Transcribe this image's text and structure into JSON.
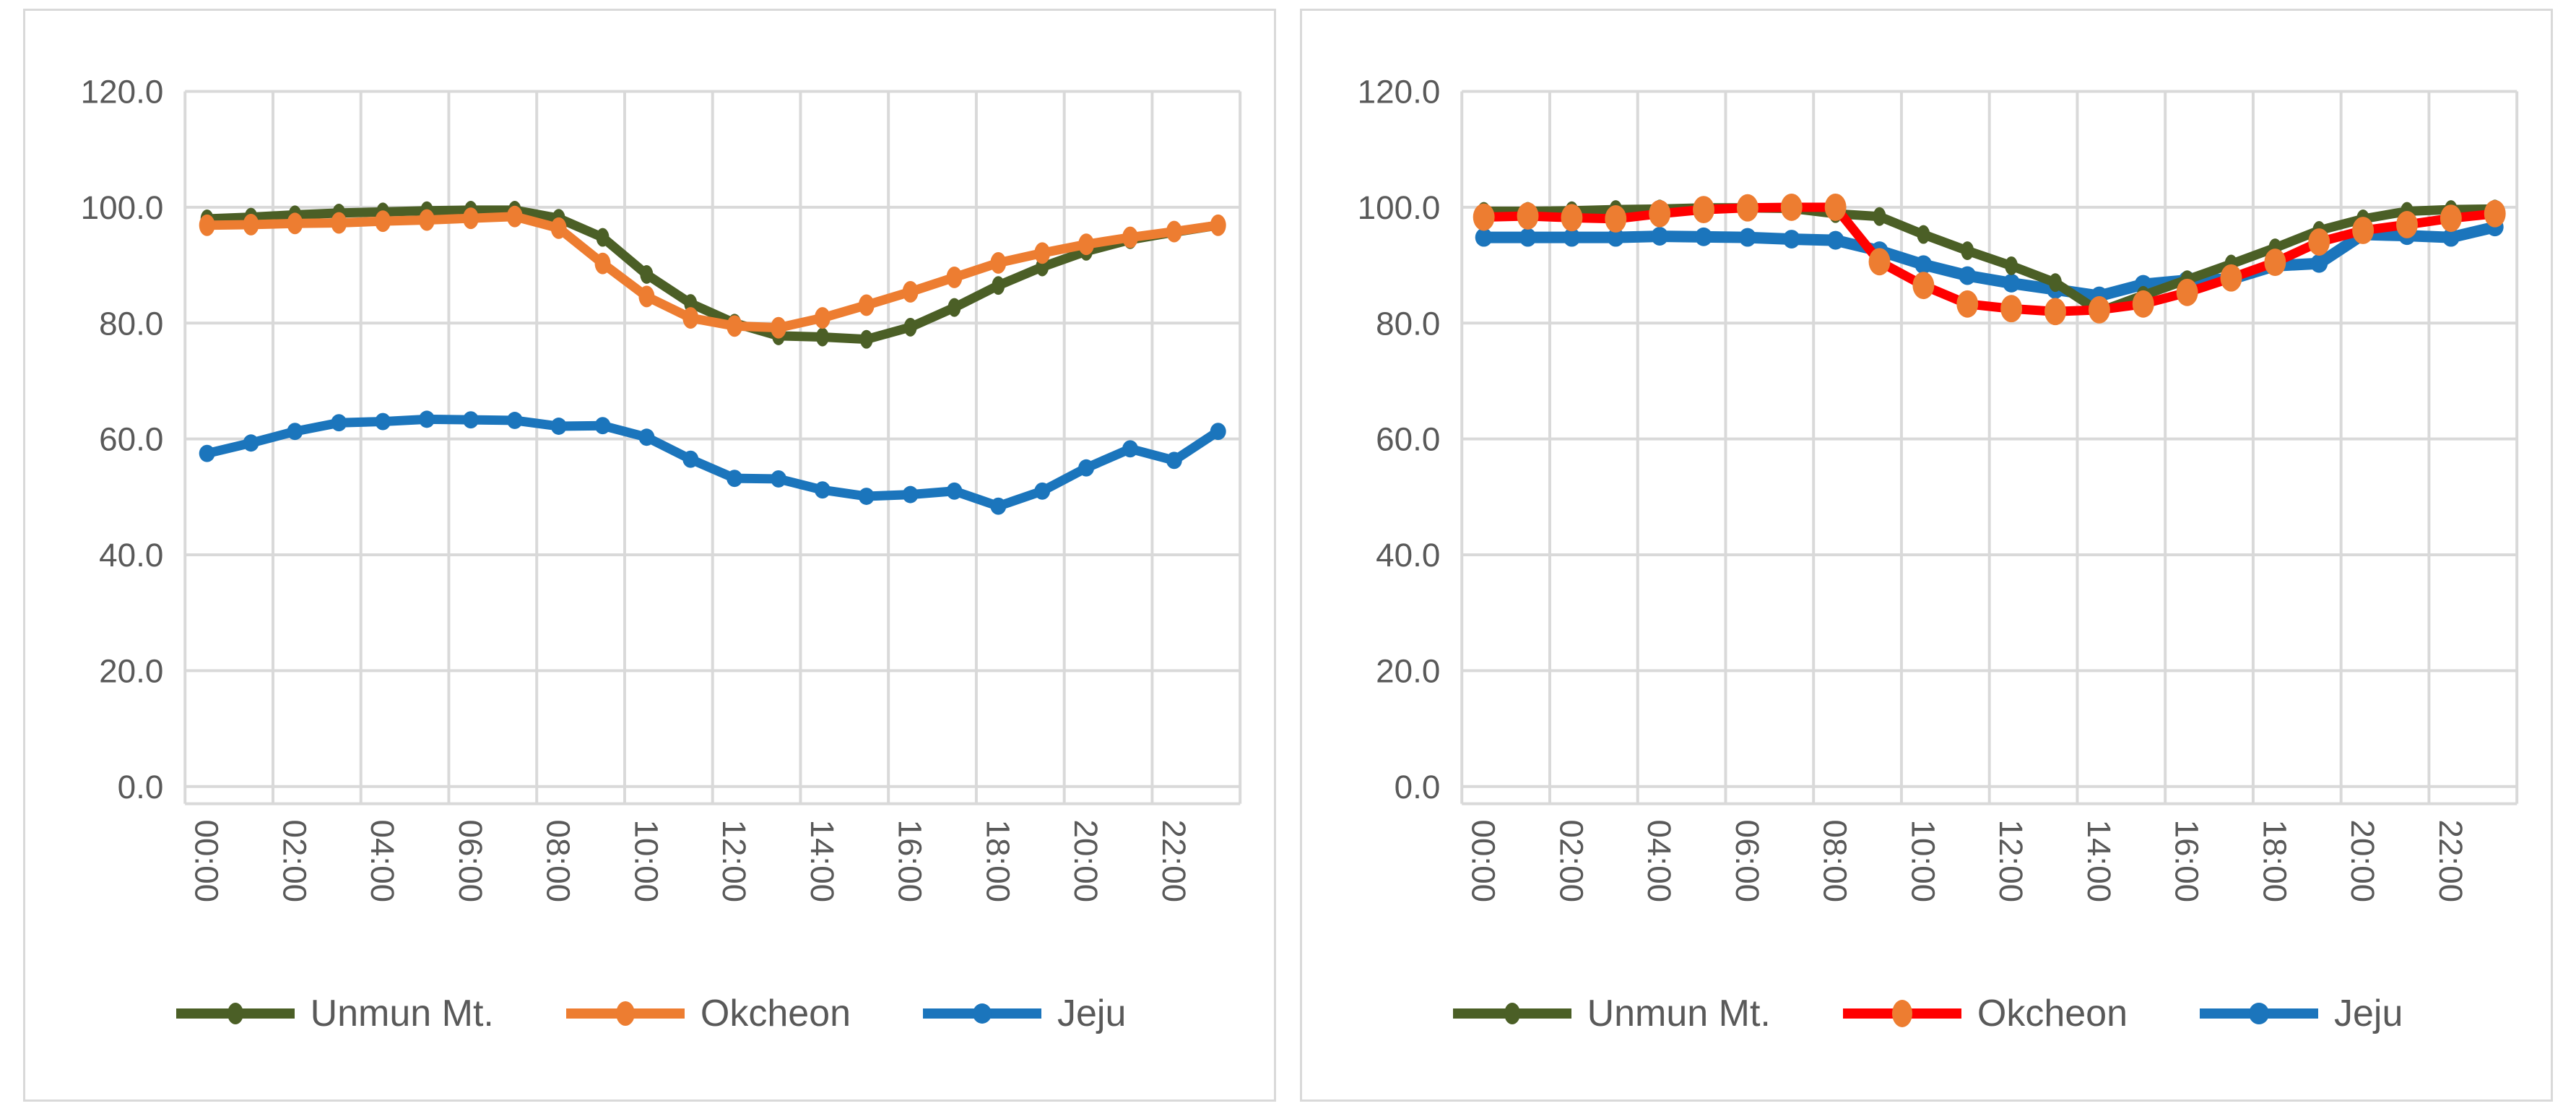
{
  "page": {
    "background": "#ffffff",
    "grid_color": "#d9d9d9",
    "axis_text_color": "#595959",
    "panel_border_color": "#d9d9d9"
  },
  "chart_data": [
    {
      "type": "line",
      "title": "",
      "xlabel": "",
      "ylabel": "",
      "position": "left",
      "x": [
        "00:00",
        "01:00",
        "02:00",
        "03:00",
        "04:00",
        "05:00",
        "06:00",
        "07:00",
        "08:00",
        "09:00",
        "10:00",
        "11:00",
        "12:00",
        "13:00",
        "14:00",
        "15:00",
        "16:00",
        "17:00",
        "18:00",
        "19:00",
        "20:00",
        "21:00",
        "22:00",
        "23:00"
      ],
      "x_tick_labels": [
        "00:00",
        "02:00",
        "04:00",
        "06:00",
        "08:00",
        "10:00",
        "12:00",
        "14:00",
        "16:00",
        "18:00",
        "20:00",
        "22:00"
      ],
      "y_tick_labels": [
        "120.0",
        "100.0",
        "80.0",
        "60.0",
        "40.0",
        "20.0",
        "0.0"
      ],
      "ylim": [
        0,
        120
      ],
      "ytick_step": 20,
      "grid": true,
      "legend_position": "bottom",
      "series": [
        {
          "name": "Unmun Mt.",
          "line_color": "#4B5F26",
          "marker_color": "#4B5F26",
          "line_width": 13,
          "marker_rx": 9,
          "marker_ry": 13,
          "values": [
            98.0,
            98.3,
            98.7,
            99.0,
            99.2,
            99.4,
            99.5,
            99.5,
            98.1,
            94.8,
            88.4,
            83.4,
            80.0,
            77.8,
            77.6,
            77.2,
            79.3,
            82.7,
            86.5,
            89.7,
            92.4,
            94.4,
            95.7,
            96.9
          ]
        },
        {
          "name": "Okcheon",
          "line_color": "#ED7D31",
          "marker_color": "#ED7D31",
          "line_width": 13,
          "marker_rx": 11,
          "marker_ry": 15,
          "values": [
            96.9,
            97.0,
            97.2,
            97.3,
            97.6,
            97.8,
            98.1,
            98.4,
            96.4,
            90.3,
            84.6,
            80.9,
            79.5,
            79.2,
            80.9,
            83.1,
            85.4,
            87.9,
            90.4,
            92.1,
            93.6,
            94.8,
            95.8,
            96.9
          ]
        },
        {
          "name": "Jeju",
          "line_color": "#1B75BC",
          "marker_color": "#1B75BC",
          "line_width": 13,
          "marker_rx": 11,
          "marker_ry": 12,
          "values": [
            57.5,
            59.3,
            61.3,
            62.8,
            63.0,
            63.4,
            63.3,
            63.2,
            62.2,
            62.3,
            60.3,
            56.5,
            53.2,
            53.1,
            51.2,
            50.1,
            50.4,
            51.0,
            48.4,
            51.0,
            55.0,
            58.3,
            56.3,
            61.3
          ]
        }
      ],
      "draw_order": [
        "Jeju",
        "Unmun Mt.",
        "Okcheon"
      ]
    },
    {
      "type": "line",
      "title": "",
      "xlabel": "",
      "ylabel": "",
      "position": "right",
      "x": [
        "00:00",
        "01:00",
        "02:00",
        "03:00",
        "04:00",
        "05:00",
        "06:00",
        "07:00",
        "08:00",
        "09:00",
        "10:00",
        "11:00",
        "12:00",
        "13:00",
        "14:00",
        "15:00",
        "16:00",
        "17:00",
        "18:00",
        "19:00",
        "20:00",
        "21:00",
        "22:00",
        "23:00"
      ],
      "x_tick_labels": [
        "00:00",
        "02:00",
        "04:00",
        "06:00",
        "08:00",
        "10:00",
        "12:00",
        "14:00",
        "16:00",
        "18:00",
        "20:00",
        "22:00"
      ],
      "y_tick_labels": [
        "120.0",
        "100.0",
        "80.0",
        "60.0",
        "40.0",
        "20.0",
        "0.0"
      ],
      "ylim": [
        0,
        120
      ],
      "ytick_step": 20,
      "grid": true,
      "legend_position": "bottom",
      "series": [
        {
          "name": "Unmun Mt.",
          "line_color": "#4B5F26",
          "marker_color": "#4B5F26",
          "line_width": 13,
          "marker_rx": 9,
          "marker_ry": 13,
          "values": [
            99.3,
            99.3,
            99.4,
            99.6,
            99.7,
            99.9,
            99.9,
            99.8,
            98.9,
            98.4,
            95.3,
            92.5,
            89.9,
            87.0,
            82.0,
            84.8,
            87.5,
            90.2,
            93.0,
            96.0,
            98.0,
            99.3,
            99.6,
            99.7
          ]
        },
        {
          "name": "Okcheon",
          "line_color": "#FF0000",
          "marker_color": "#ED7D31",
          "line_width": 13,
          "marker_rx": 15,
          "marker_ry": 19,
          "values": [
            98.3,
            98.5,
            98.2,
            98.0,
            98.9,
            99.6,
            99.9,
            100.0,
            100.0,
            90.6,
            86.5,
            83.3,
            82.5,
            82.0,
            82.3,
            83.3,
            85.3,
            87.8,
            90.5,
            94.0,
            96.0,
            97.0,
            98.1,
            98.9
          ]
        },
        {
          "name": "Jeju",
          "line_color": "#1B75BC",
          "marker_color": "#1B75BC",
          "line_width": 16,
          "marker_rx": 12,
          "marker_ry": 13,
          "values": [
            94.8,
            94.8,
            94.8,
            94.8,
            95.0,
            94.9,
            94.8,
            94.5,
            94.3,
            92.5,
            90.1,
            88.2,
            86.9,
            85.8,
            84.7,
            86.7,
            87.4,
            87.6,
            89.9,
            90.3,
            95.3,
            95.1,
            94.8,
            96.6
          ]
        }
      ],
      "draw_order": [
        "Jeju",
        "Unmun Mt.",
        "Okcheon"
      ]
    }
  ]
}
